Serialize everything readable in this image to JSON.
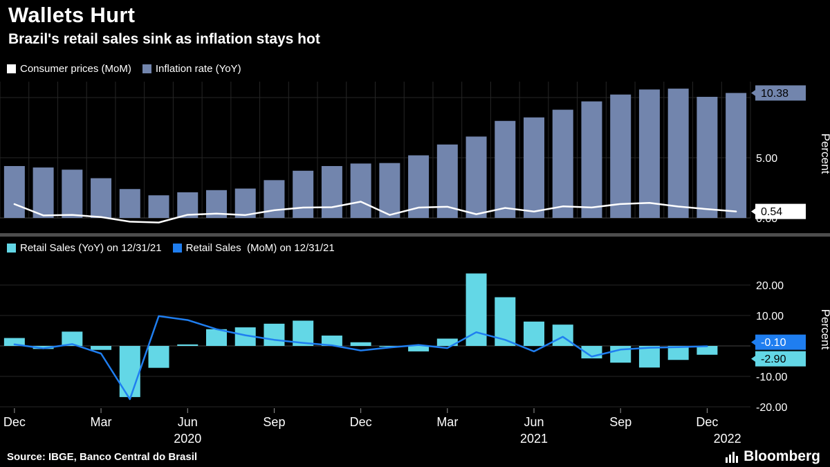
{
  "header": {
    "title": "Wallets Hurt",
    "subtitle": "Brazil's retail sales sink as inflation stays hot"
  },
  "source": "Source: IBGE, Banco Central do Brasil",
  "brand": "Bloomberg",
  "colors": {
    "background": "#000000",
    "inflation_bar": "#7285ad",
    "cpi_line": "#ffffff",
    "retail_bar": "#63d7e6",
    "retail_line": "#1f7ef0",
    "grid": "#262626",
    "axis": "#454545",
    "tick": "#999999",
    "divider": "#4d4d4d"
  },
  "legends": {
    "top": [
      {
        "label": "Consumer prices (MoM)",
        "swatch": "#ffffff"
      },
      {
        "label": "Inflation rate (YoY)",
        "swatch": "#7285ad"
      }
    ],
    "bottom": [
      {
        "label": "Retail Sales (YoY) on 12/31/21",
        "swatch": "#63d7e6"
      },
      {
        "label": "Retail Sales  (MoM) on 12/31/21",
        "swatch": "#1f7ef0"
      }
    ]
  },
  "chart_data": [
    {
      "type": "bar+line",
      "panel": "top",
      "ylabel": "Percent",
      "ylim": [
        -0.6,
        12.2
      ],
      "months": [
        "Dec 2019",
        "Jan 2020",
        "Feb 2020",
        "Mar 2020",
        "Apr 2020",
        "May 2020",
        "Jun 2020",
        "Jul 2020",
        "Aug 2020",
        "Sep 2020",
        "Oct 2020",
        "Nov 2020",
        "Dec 2020",
        "Jan 2021",
        "Feb 2021",
        "Mar 2021",
        "Apr 2021",
        "May 2021",
        "Jun 2021",
        "Jul 2021",
        "Aug 2021",
        "Sep 2021",
        "Oct 2021",
        "Nov 2021",
        "Dec 2021",
        "Jan 2022"
      ],
      "series": [
        {
          "name": "Inflation rate (YoY)",
          "type": "bar",
          "values": [
            4.31,
            4.19,
            4.01,
            3.3,
            2.4,
            1.88,
            2.13,
            2.31,
            2.44,
            3.14,
            3.92,
            4.31,
            4.52,
            4.56,
            5.2,
            6.1,
            6.76,
            8.06,
            8.35,
            8.99,
            9.68,
            10.25,
            10.67,
            10.74,
            10.06,
            10.38
          ]
        },
        {
          "name": "Consumer prices (MoM)",
          "type": "line",
          "values": [
            1.15,
            0.21,
            0.25,
            0.07,
            -0.31,
            -0.38,
            0.26,
            0.36,
            0.24,
            0.64,
            0.86,
            0.89,
            1.35,
            0.25,
            0.86,
            0.93,
            0.31,
            0.83,
            0.53,
            0.96,
            0.87,
            1.16,
            1.25,
            0.95,
            0.73,
            0.54
          ]
        }
      ],
      "yticks": [
        {
          "value": 5,
          "label": "5.00"
        },
        {
          "value": 0,
          "label": "0.00"
        }
      ],
      "callouts": [
        {
          "label": "10.38",
          "value": 10.38,
          "bg": "#7285ad",
          "fg": "#000000"
        },
        {
          "label": "0.54",
          "value": 0.54,
          "bg": "#ffffff",
          "fg": "#000000"
        }
      ]
    },
    {
      "type": "bar+line",
      "panel": "bottom",
      "ylabel": "Percent",
      "ylim": [
        -24,
        26
      ],
      "months": [
        "Dec 2019",
        "Jan 2020",
        "Feb 2020",
        "Mar 2020",
        "Apr 2020",
        "May 2020",
        "Jun 2020",
        "Jul 2020",
        "Aug 2020",
        "Sep 2020",
        "Oct 2020",
        "Nov 2020",
        "Dec 2020",
        "Jan 2021",
        "Feb 2021",
        "Mar 2021",
        "Apr 2021",
        "May 2021",
        "Jun 2021",
        "Jul 2021",
        "Aug 2021",
        "Sep 2021",
        "Oct 2021",
        "Nov 2021",
        "Dec 2021"
      ],
      "series": [
        {
          "name": "Retail Sales (YoY) on 12/31/21",
          "type": "bar",
          "values": [
            2.6,
            -1.0,
            4.7,
            -1.3,
            -16.8,
            -7.2,
            0.5,
            5.5,
            6.1,
            7.3,
            8.3,
            3.4,
            1.2,
            -0.3,
            -1.8,
            2.4,
            23.8,
            16.0,
            8.0,
            7.0,
            -4.1,
            -5.5,
            -7.1,
            -4.6,
            -2.9
          ]
        },
        {
          "name": "Retail Sales (MoM) on 12/31/21",
          "type": "line",
          "values": [
            0.5,
            -0.8,
            0.6,
            -2.5,
            -17.5,
            9.8,
            8.5,
            5.5,
            3.5,
            2.0,
            1.0,
            0.2,
            -1.5,
            -0.5,
            0.3,
            -0.7,
            4.5,
            2.0,
            -1.8,
            3.0,
            -3.5,
            -1.2,
            -0.6,
            -0.4,
            -0.1
          ]
        }
      ],
      "yticks": [
        {
          "value": 20,
          "label": "20.00"
        },
        {
          "value": 10,
          "label": "10.00"
        },
        {
          "value": -10,
          "label": "-10.00"
        },
        {
          "value": -20,
          "label": "-20.00"
        }
      ],
      "callouts": [
        {
          "label": "-0.10",
          "value": -0.1,
          "bg": "#1f7ef0",
          "fg": "#ffffff"
        },
        {
          "label": "-2.90",
          "value": -2.9,
          "bg": "#63d7e6",
          "fg": "#000000"
        }
      ]
    }
  ],
  "x_axis": {
    "ticks": [
      {
        "month": 0,
        "label": "Dec"
      },
      {
        "month": 3,
        "label": "Mar"
      },
      {
        "month": 6,
        "label": "Jun"
      },
      {
        "month": 9,
        "label": "Sep"
      },
      {
        "month": 12,
        "label": "Dec"
      },
      {
        "month": 15,
        "label": "Mar"
      },
      {
        "month": 18,
        "label": "Jun"
      },
      {
        "month": 21,
        "label": "Sep"
      },
      {
        "month": 24,
        "label": "Dec"
      }
    ],
    "years": [
      {
        "month": 6,
        "label": "2020"
      },
      {
        "month": 18,
        "label": "2021"
      },
      {
        "month": 24.7,
        "label": "2022"
      }
    ]
  }
}
